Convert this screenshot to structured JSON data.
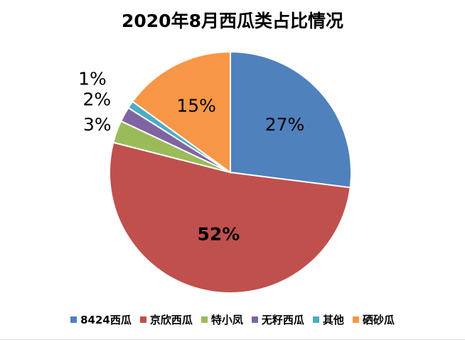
{
  "chart_data": {
    "type": "pie",
    "title": "2020年8月西瓜类占比情况",
    "categories": [
      "8424西瓜",
      "京欣西瓜",
      "特小凤",
      "无籽西瓜",
      "其他",
      "硒砂瓜"
    ],
    "values": [
      27,
      52,
      3,
      2,
      1,
      15
    ],
    "data_labels": [
      "27%",
      "52%",
      "3%",
      "2%",
      "1%",
      "15%"
    ],
    "colors": [
      "#4f81bd",
      "#c0504d",
      "#9bbb59",
      "#8064a2",
      "#4bacc6",
      "#f79646"
    ],
    "start_angle": "12 o'clock",
    "direction": "clockwise",
    "legend_position": "bottom"
  }
}
